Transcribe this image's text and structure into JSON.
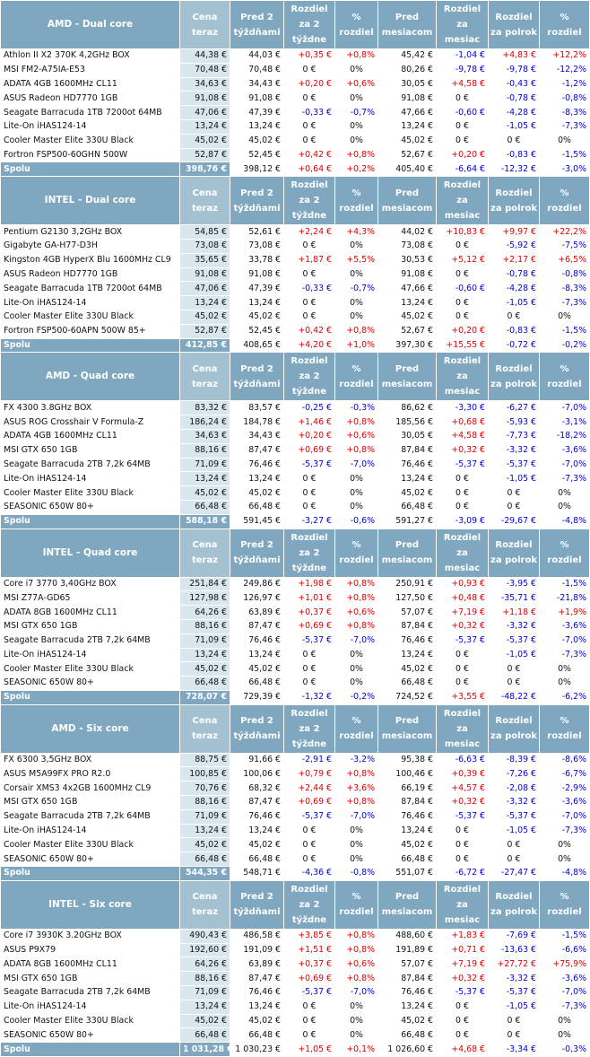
{
  "colors": {
    "header_bg": "#7fa7bf",
    "price_col_bg": "#d8e6ee",
    "positive": "#e00000",
    "negative": "#0000dd"
  },
  "headers": {
    "price_now": "Cena teraz",
    "two_weeks": "Pred 2 týždňami",
    "diff_two_weeks": "Rozdiel za 2 týždne",
    "pct": "% rozdiel",
    "month_ago": "Pred mesiacom",
    "diff_month": "Rozdiel za mesiac",
    "diff_half": "Rozdiel za polrok",
    "pct_half": "% rozdiel"
  },
  "sections": [
    {
      "title": "AMD - Dual core",
      "rows": [
        [
          "Athlon II X2 370K 4,2GHz BOX",
          "44,38 €",
          "44,03 €",
          "+0,35 €",
          "+0,8%",
          "45,42 €",
          "-1,04 €",
          "+4,83 €",
          "+12,2%"
        ],
        [
          "MSI FM2-A75IA-E53",
          "70,48 €",
          "70,48 €",
          "0 €",
          "0%",
          "80,26 €",
          "-9,78 €",
          "-9,78 €",
          "-12,2%"
        ],
        [
          "ADATA 4GB 1600MHz CL11",
          "34,63 €",
          "34,43 €",
          "+0,20 €",
          "+0,6%",
          "30,05 €",
          "+4,58 €",
          "-0,43 €",
          "-1,2%"
        ],
        [
          "ASUS Radeon HD7770 1GB",
          "91,08 €",
          "91,08 €",
          "0 €",
          "0%",
          "91,08 €",
          "0 €",
          "-0,78 €",
          "-0,8%"
        ],
        [
          "Seagate Barracuda 1TB 7200ot 64MB",
          "47,06 €",
          "47,39 €",
          "-0,33 €",
          "-0,7%",
          "47,66 €",
          "-0,60 €",
          "-4,28 €",
          "-8,3%"
        ],
        [
          "Lite-On  iHAS124-14",
          "13,24 €",
          "13,24 €",
          "0 €",
          "0%",
          "13,24 €",
          "0 €",
          "-1,05 €",
          "-7,3%"
        ],
        [
          "Cooler Master Elite 330U Black",
          "45,02 €",
          "45,02 €",
          "0 €",
          "0%",
          "45,02 €",
          "0 €",
          "0 €",
          "0%"
        ],
        [
          "Fortron FSP500-60GHN 500W",
          "52,87 €",
          "52,45 €",
          "+0,42 €",
          "+0,8%",
          "52,67 €",
          "+0,20 €",
          "-0,83 €",
          "-1,5%"
        ]
      ],
      "total": [
        "Spolu",
        "398,76 €",
        "398,12 €",
        "+0,64 €",
        "+0,2%",
        "405,40 €",
        "-6,64 €",
        "-12,32 €",
        "-3,0%"
      ]
    },
    {
      "title": "INTEL - Dual core",
      "rows": [
        [
          "Pentium G2130 3,2GHz BOX",
          "54,85 €",
          "52,61 €",
          "+2,24 €",
          "+4,3%",
          "44,02 €",
          "+10,83 €",
          "+9,97 €",
          "+22,2%"
        ],
        [
          "Gigabyte GA-H77-D3H",
          "73,08 €",
          "73,08 €",
          "0 €",
          "0%",
          "73,08 €",
          "0 €",
          "-5,92 €",
          "-7,5%"
        ],
        [
          "Kingston 4GB HyperX Blu 1600MHz CL9",
          "35,65 €",
          "33,78 €",
          "+1,87 €",
          "+5,5%",
          "30,53 €",
          "+5,12 €",
          "+2,17 €",
          "+6,5%"
        ],
        [
          "ASUS Radeon HD7770 1GB",
          "91,08 €",
          "91,08 €",
          "0 €",
          "0%",
          "91,08 €",
          "0 €",
          "-0,78 €",
          "-0,8%"
        ],
        [
          "Seagate Barracuda 1TB 7200ot 64MB",
          "47,06 €",
          "47,39 €",
          "-0,33 €",
          "-0,7%",
          "47,66 €",
          "-0,60 €",
          "-4,28 €",
          "-8,3%"
        ],
        [
          "Lite-On  iHAS124-14",
          "13,24 €",
          "13,24 €",
          "0 €",
          "0%",
          "13,24 €",
          "0 €",
          "-1,05 €",
          "-7,3%"
        ],
        [
          "Cooler Master Elite 330U Black",
          "45,02 €",
          "45,02 €",
          "0 €",
          "0%",
          "45,02 €",
          "0 €",
          "0 €",
          "0%"
        ],
        [
          "Fortron FSP500-60APN 500W 85+",
          "52,87 €",
          "52,45 €",
          "+0,42 €",
          "+0,8%",
          "52,67 €",
          "+0,20 €",
          "-0,83 €",
          "-1,5%"
        ]
      ],
      "total": [
        "Spolu",
        "412,85 €",
        "408,65 €",
        "+4,20 €",
        "+1,0%",
        "397,30 €",
        "+15,55 €",
        "-0,72 €",
        "-0,2%"
      ]
    },
    {
      "title": "AMD - Quad core",
      "rows": [
        [
          "FX 4300 3.8GHz BOX",
          "83,32 €",
          "83,57 €",
          "-0,25 €",
          "-0,3%",
          "86,62 €",
          "-3,30 €",
          "-6,27 €",
          "-7,0%"
        ],
        [
          "ASUS ROG Crosshair V Formula-Z",
          "186,24 €",
          "184,78 €",
          "+1,46 €",
          "+0,8%",
          "185,56 €",
          "+0,68 €",
          "-5,93 €",
          "-3,1%"
        ],
        [
          "ADATA 4GB 1600MHz CL11",
          "34,63 €",
          "34,43 €",
          "+0,20 €",
          "+0,6%",
          "30,05 €",
          "+4,58 €",
          "-7,73 €",
          "-18,2%"
        ],
        [
          "MSI GTX 650 1GB",
          "88,16 €",
          "87,47 €",
          "+0,69 €",
          "+0,8%",
          "87,84 €",
          "+0,32 €",
          "-3,32 €",
          "-3,6%"
        ],
        [
          "Seagate Barracuda 2TB 7,2k 64MB",
          "71,09 €",
          "76,46 €",
          "-5,37 €",
          "-7,0%",
          "76,46 €",
          "-5,37 €",
          "-5,37 €",
          "-7,0%"
        ],
        [
          "Lite-On  iHAS124-14",
          "13,24 €",
          "13,24 €",
          "0 €",
          "0%",
          "13,24 €",
          "0 €",
          "-1,05 €",
          "-7,3%"
        ],
        [
          "Cooler Master Elite 330U Black",
          "45,02 €",
          "45,02 €",
          "0 €",
          "0%",
          "45,02 €",
          "0 €",
          "0 €",
          "0%"
        ],
        [
          "SEASONIC 650W 80+",
          "66,48 €",
          "66,48 €",
          "0 €",
          "0%",
          "66,48 €",
          "0 €",
          "0 €",
          "0%"
        ]
      ],
      "total": [
        "Spolu",
        "588,18 €",
        "591,45 €",
        "-3,27 €",
        "-0,6%",
        "591,27 €",
        "-3,09 €",
        "-29,67 €",
        "-4,8%"
      ]
    },
    {
      "title": "INTEL - Quad core",
      "rows": [
        [
          "Core i7 3770 3,40GHz BOX",
          "251,84 €",
          "249,86 €",
          "+1,98 €",
          "+0,8%",
          "250,91 €",
          "+0,93 €",
          "-3,95 €",
          "-1,5%"
        ],
        [
          "MSI Z77A-GD65",
          "127,98 €",
          "126,97 €",
          "+1,01 €",
          "+0,8%",
          "127,50 €",
          "+0,48 €",
          "-35,71 €",
          "-21,8%"
        ],
        [
          "ADATA 8GB 1600MHz CL11",
          "64,26 €",
          "63,89 €",
          "+0,37 €",
          "+0,6%",
          "57,07 €",
          "+7,19 €",
          "+1,18 €",
          "+1,9%"
        ],
        [
          "MSI GTX 650 1GB",
          "88,16 €",
          "87,47 €",
          "+0,69 €",
          "+0,8%",
          "87,84 €",
          "+0,32 €",
          "-3,32 €",
          "-3,6%"
        ],
        [
          "Seagate Barracuda 2TB 7,2k 64MB",
          "71,09 €",
          "76,46 €",
          "-5,37 €",
          "-7,0%",
          "76,46 €",
          "-5,37 €",
          "-5,37 €",
          "-7,0%"
        ],
        [
          "Lite-On  iHAS124-14",
          "13,24 €",
          "13,24 €",
          "0 €",
          "0%",
          "13,24 €",
          "0 €",
          "-1,05 €",
          "-7,3%"
        ],
        [
          "Cooler Master Elite 330U Black",
          "45,02 €",
          "45,02 €",
          "0 €",
          "0%",
          "45,02 €",
          "0 €",
          "0 €",
          "0%"
        ],
        [
          "SEASONIC 650W 80+",
          "66,48 €",
          "66,48 €",
          "0 €",
          "0%",
          "66,48 €",
          "0 €",
          "0 €",
          "0%"
        ]
      ],
      "total": [
        "Spolu",
        "728,07 €",
        "729,39 €",
        "-1,32 €",
        "-0,2%",
        "724,52 €",
        "+3,55 €",
        "-48,22 €",
        "-6,2%"
      ]
    },
    {
      "title": "AMD - Six core",
      "rows": [
        [
          "FX 6300 3,5GHz BOX",
          "88,75 €",
          "91,66 €",
          "-2,91 €",
          "-3,2%",
          "95,38 €",
          "-6,63 €",
          "-8,39 €",
          "-8,6%"
        ],
        [
          "ASUS M5A99FX PRO R2.0",
          "100,85 €",
          "100,06 €",
          "+0,79 €",
          "+0,8%",
          "100,46 €",
          "+0,39 €",
          "-7,26 €",
          "-6,7%"
        ],
        [
          "Corsair XMS3 4x2GB 1600MHz CL9",
          "70,76 €",
          "68,32 €",
          "+2,44 €",
          "+3,6%",
          "66,19 €",
          "+4,57 €",
          "-2,08 €",
          "-2,9%"
        ],
        [
          "MSI GTX 650 1GB",
          "88,16 €",
          "87,47 €",
          "+0,69 €",
          "+0,8%",
          "87,84 €",
          "+0,32 €",
          "-3,32 €",
          "-3,6%"
        ],
        [
          "Seagate Barracuda 2TB 7,2k 64MB",
          "71,09 €",
          "76,46 €",
          "-5,37 €",
          "-7,0%",
          "76,46 €",
          "-5,37 €",
          "-5,37 €",
          "-7,0%"
        ],
        [
          "Lite-On  iHAS124-14",
          "13,24 €",
          "13,24 €",
          "0 €",
          "0%",
          "13,24 €",
          "0 €",
          "-1,05 €",
          "-7,3%"
        ],
        [
          "Cooler Master Elite 330U Black",
          "45,02 €",
          "45,02 €",
          "0 €",
          "0%",
          "45,02 €",
          "0 €",
          "0 €",
          "0%"
        ],
        [
          "SEASONIC 650W 80+",
          "66,48 €",
          "66,48 €",
          "0 €",
          "0%",
          "66,48 €",
          "0 €",
          "0 €",
          "0%"
        ]
      ],
      "total": [
        "Spolu",
        "544,35 €",
        "548,71 €",
        "-4,36 €",
        "-0,8%",
        "551,07 €",
        "-6,72 €",
        "-27,47 €",
        "-4,8%"
      ]
    },
    {
      "title": "INTEL - Six core",
      "rows": [
        [
          "Core i7 3930K 3.20GHz BOX",
          "490,43 €",
          "486,58 €",
          "+3,85 €",
          "+0,8%",
          "488,60 €",
          "+1,83 €",
          "-7,69 €",
          "-1,5%"
        ],
        [
          "ASUS P9X79",
          "192,60 €",
          "191,09 €",
          "+1,51 €",
          "+0,8%",
          "191,89 €",
          "+0,71 €",
          "-13,63 €",
          "-6,6%"
        ],
        [
          "ADATA 8GB 1600MHz CL11",
          "64,26 €",
          "63,89 €",
          "+0,37 €",
          "+0,6%",
          "57,07 €",
          "+7,19 €",
          "+27,72 €",
          "+75,9%"
        ],
        [
          "MSI GTX 650 1GB",
          "88,16 €",
          "87,47 €",
          "+0,69 €",
          "+0,8%",
          "87,84 €",
          "+0,32 €",
          "-3,32 €",
          "-3,6%"
        ],
        [
          "Seagate Barracuda 2TB 7,2k 64MB",
          "71,09 €",
          "76,46 €",
          "-5,37 €",
          "-7,0%",
          "76,46 €",
          "-5,37 €",
          "-5,37 €",
          "-7,0%"
        ],
        [
          "Lite-On  iHAS124-14",
          "13,24 €",
          "13,24 €",
          "0 €",
          "0%",
          "13,24 €",
          "0 €",
          "-1,05 €",
          "-7,3%"
        ],
        [
          "Cooler Master Elite 330U Black",
          "45,02 €",
          "45,02 €",
          "0 €",
          "0%",
          "45,02 €",
          "0 €",
          "0 €",
          "0%"
        ],
        [
          "SEASONIC 650W 80+",
          "66,48 €",
          "66,48 €",
          "0 €",
          "0%",
          "66,48 €",
          "0 €",
          "0 €",
          "0%"
        ]
      ],
      "total": [
        "Spolu",
        "1 031,28 €",
        "1 030,23 €",
        "+1,05 €",
        "+0,1%",
        "1 026,60 €",
        "+4,68 €",
        "-3,34 €",
        "-0,3%"
      ]
    }
  ]
}
